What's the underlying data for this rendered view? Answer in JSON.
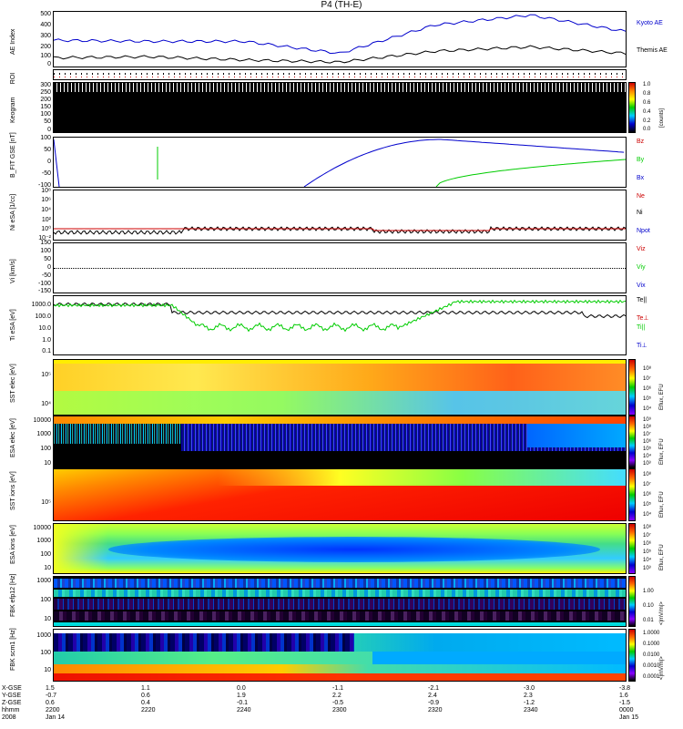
{
  "title": "P4 (TH-E)",
  "panels": {
    "ae": {
      "ylabel": "AE Index",
      "ticks": [
        "500",
        "400",
        "300",
        "200",
        "100",
        "0"
      ],
      "legend": [
        "Kyoto AE",
        "Themis AE"
      ]
    },
    "roi": {
      "ylabel": "ROI"
    },
    "keogram": {
      "ylabel": "Keogram",
      "ticks": [
        "300",
        "250",
        "200",
        "150",
        "100",
        "50",
        "0"
      ],
      "cb_ticks": [
        "1.0",
        "0.8",
        "0.6",
        "0.4",
        "0.2",
        "0.0"
      ],
      "cb_unit": "[counts]"
    },
    "bfit": {
      "ylabel": "B_FIT GSE [nT]",
      "ticks": [
        "100",
        "50",
        "0",
        "-50",
        "-100"
      ],
      "legend": [
        "Bz",
        "By",
        "Bx"
      ]
    },
    "ni": {
      "ylabel": "Ni eSA [1/cc]",
      "ticks": [
        "10⁸",
        "10⁶",
        "10⁴",
        "10²",
        "10⁰",
        "10⁻²"
      ],
      "legend": [
        "Ne",
        "Ni",
        "Npot"
      ]
    },
    "vi": {
      "ylabel": "Vi [km/s]",
      "ticks": [
        "150",
        "100",
        "50",
        "0",
        "-50",
        "-100",
        "-150"
      ],
      "legend": [
        "Viz",
        "Viy",
        "Vix"
      ]
    },
    "ti": {
      "ylabel": "Ti eSA [eV]",
      "ticks": [
        "1000.0",
        "100.0",
        "10.0",
        "1.0",
        "0.1"
      ],
      "legend": [
        "Te||",
        "Te⊥",
        "Ti||",
        "Ti⊥"
      ]
    },
    "sst_e": {
      "ylabel": "SST elec [eV]",
      "ticks": [
        "10⁵",
        "10⁴"
      ],
      "cb_ticks": [
        "10⁸",
        "10⁷",
        "10⁶",
        "10⁵",
        "10⁴"
      ],
      "cb_unit": "Eflux, EFU"
    },
    "esa_e": {
      "ylabel": "ESA elec [eV]",
      "ticks": [
        "10000",
        "1000",
        "100",
        "10"
      ],
      "cb_ticks": [
        "10⁹",
        "10⁸",
        "10⁷",
        "10⁶",
        "10⁵",
        "10⁴",
        "10³"
      ],
      "cb_unit": "Eflux, EFU"
    },
    "sst_i": {
      "ylabel": "SST ions [eV]",
      "ticks": [
        "10⁵"
      ],
      "cb_ticks": [
        "10⁸",
        "10⁷",
        "10⁶",
        "10⁵",
        "10⁴"
      ],
      "cb_unit": "Eflux, EFU"
    },
    "esa_i": {
      "ylabel": "ESA ions [eV]",
      "ticks": [
        "10000",
        "1000",
        "100",
        "10"
      ],
      "cb_ticks": [
        "10⁸",
        "10⁷",
        "10⁶",
        "10⁵",
        "10⁴",
        "10³"
      ],
      "cb_unit": "Eflux, EFU"
    },
    "fbk_e": {
      "ylabel": "FBK efp12 [Hz]",
      "ticks": [
        "1000",
        "100",
        "10"
      ],
      "cb_ticks": [
        "1.00",
        "0.10",
        "0.01"
      ],
      "cb_unit": "<|mV/m|>"
    },
    "fbk_s": {
      "ylabel": "FBK scm1 [Hz]",
      "ticks": [
        "1000",
        "100",
        "10"
      ],
      "cb_ticks": [
        "1.0000",
        "0.1000",
        "0.0100",
        "0.0010",
        "0.0001"
      ],
      "cb_unit": "<|mV/m|>"
    }
  },
  "xaxis": {
    "row_labels": [
      "X-GSE",
      "Y-GSE",
      "Z-GSE",
      "hhmm",
      "2008"
    ],
    "columns": [
      {
        "x": "1.5",
        "y": "-0.7",
        "z": "0.6",
        "t": "2200",
        "d": "Jan 14"
      },
      {
        "x": "1.1",
        "y": "0.6",
        "z": "0.4",
        "t": "2220",
        "d": ""
      },
      {
        "x": "0.0",
        "y": "1.9",
        "z": "-0.1",
        "t": "2240",
        "d": ""
      },
      {
        "x": "-1.1",
        "y": "2.2",
        "z": "-0.5",
        "t": "2300",
        "d": ""
      },
      {
        "x": "-2.1",
        "y": "2.4",
        "z": "-0.9",
        "t": "2320",
        "d": ""
      },
      {
        "x": "-3.0",
        "y": "2.3",
        "z": "-1.2",
        "t": "2340",
        "d": ""
      },
      {
        "x": "-3.8",
        "y": "1.6",
        "z": "-1.5",
        "t": "0000",
        "d": "Jan 15"
      }
    ]
  },
  "chart_data": {
    "type": "line",
    "title": "P4 (TH-E)",
    "x": [
      "2200",
      "2220",
      "2240",
      "2300",
      "2320",
      "2340",
      "0000"
    ],
    "series": [
      {
        "name": "Kyoto AE",
        "values": [
          240,
          230,
          230,
          120,
          380,
          470,
          320
        ]
      },
      {
        "name": "Themis AE",
        "values": [
          80,
          90,
          60,
          40,
          140,
          180,
          120
        ]
      }
    ],
    "ylabel": "AE Index",
    "ylim": [
      0,
      500
    ],
    "colors": {
      "kyoto": "#0000cc",
      "themis": "#000000",
      "bx": "#0000cc",
      "by": "#00cc00",
      "bz": "#cc0000"
    }
  }
}
